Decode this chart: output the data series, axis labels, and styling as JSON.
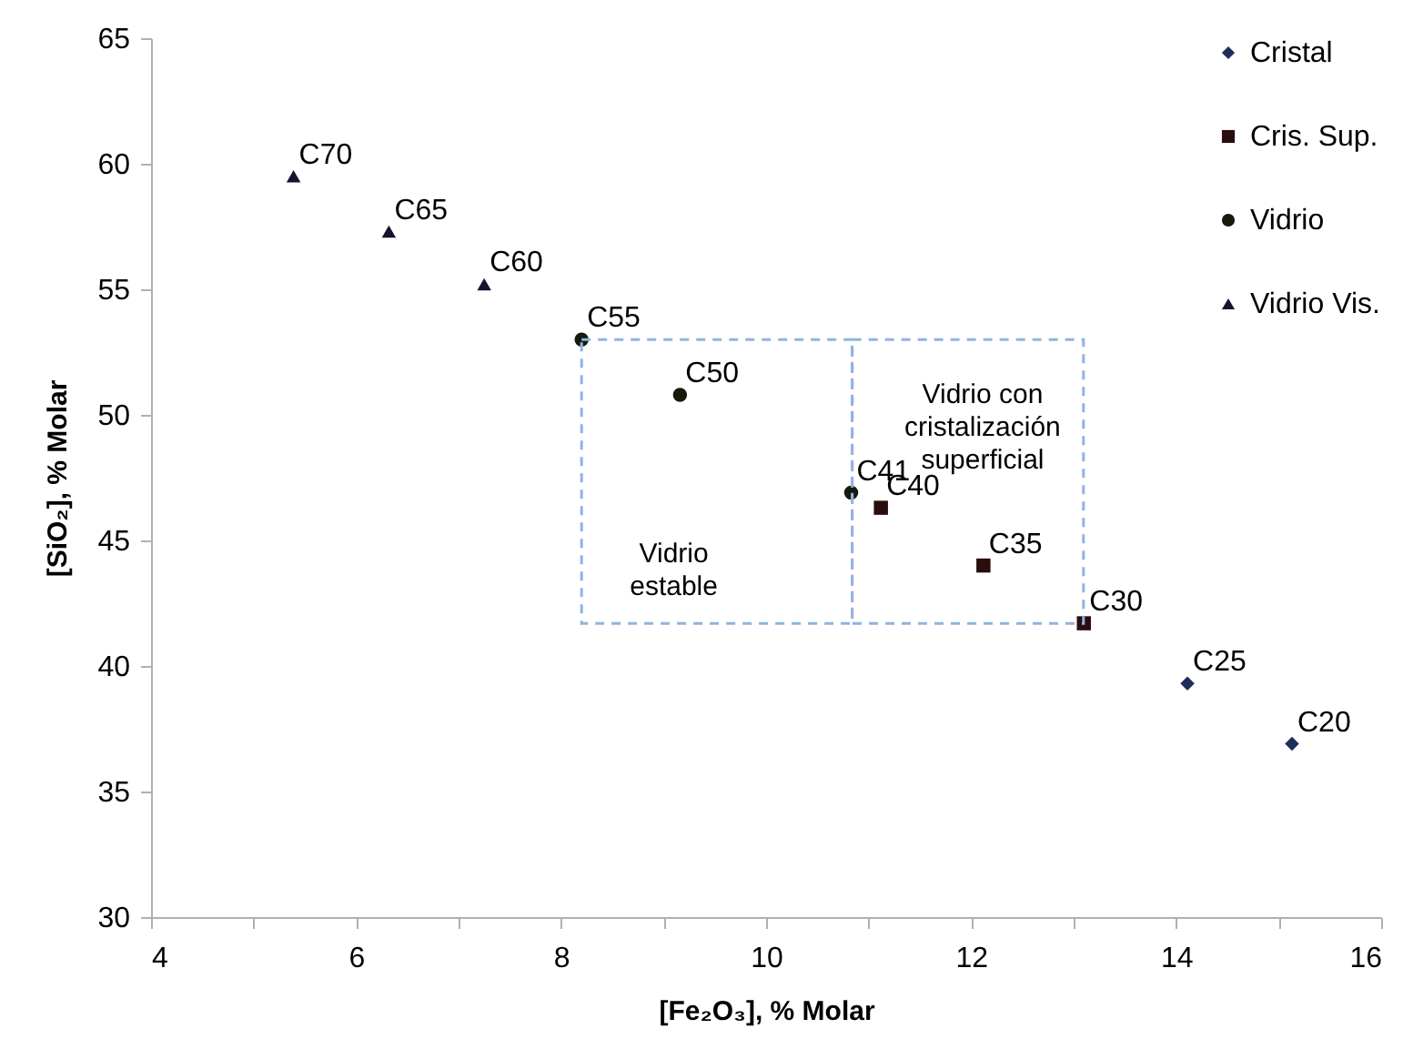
{
  "chart_data": {
    "type": "scatter",
    "xlabel": "[Fe₂O₃], % Molar",
    "ylabel": "[SiO₂], % Molar",
    "xlim": [
      4,
      16
    ],
    "xticks": [
      4,
      {
        "value": 5,
        "label": null
      },
      6,
      {
        "value": 7,
        "label": null
      },
      8,
      {
        "value": 9,
        "label": null
      },
      10,
      {
        "value": 11,
        "label": null
      },
      12,
      {
        "value": 13,
        "label": null
      },
      14,
      {
        "value": 15,
        "label": null
      },
      16
    ],
    "ylim": [
      30,
      65
    ],
    "yticks": [
      30,
      35,
      40,
      45,
      50,
      55,
      60,
      65
    ],
    "grid": false,
    "legend": "top right",
    "series": [
      {
        "name": "Cristal",
        "color": "#1f2d5a",
        "marker": "diamond",
        "x": [
          14.11,
          15.13
        ],
        "values": [
          39.3,
          36.9
        ],
        "value_labels": [
          "C25",
          "C20"
        ]
      },
      {
        "name": "Cris. Sup.",
        "color": "#2a0d0d",
        "marker": "square",
        "x": [
          11.12,
          12.12,
          13.1
        ],
        "values": [
          46.3,
          44.0,
          41.7
        ],
        "value_labels": [
          "C40",
          "C35",
          "C30"
        ]
      },
      {
        "name": "Vidrio",
        "color": "#151a0a",
        "marker": "circle",
        "x": [
          8.2,
          9.16,
          10.83
        ],
        "values": [
          53.0,
          50.8,
          46.9
        ],
        "value_labels": [
          "C55",
          "C50",
          "C41"
        ]
      },
      {
        "name": "Vidrio Vis.",
        "color": "#1a1030",
        "marker": "triangle",
        "x": [
          5.39,
          6.32,
          7.25
        ],
        "values": [
          59.5,
          57.3,
          55.2
        ],
        "value_labels": [
          "C70",
          "C65",
          "C60"
        ]
      }
    ],
    "annotations": [
      "Vidrio\nestable",
      "Vidrio con\ncristalización\nsuperficial"
    ]
  }
}
